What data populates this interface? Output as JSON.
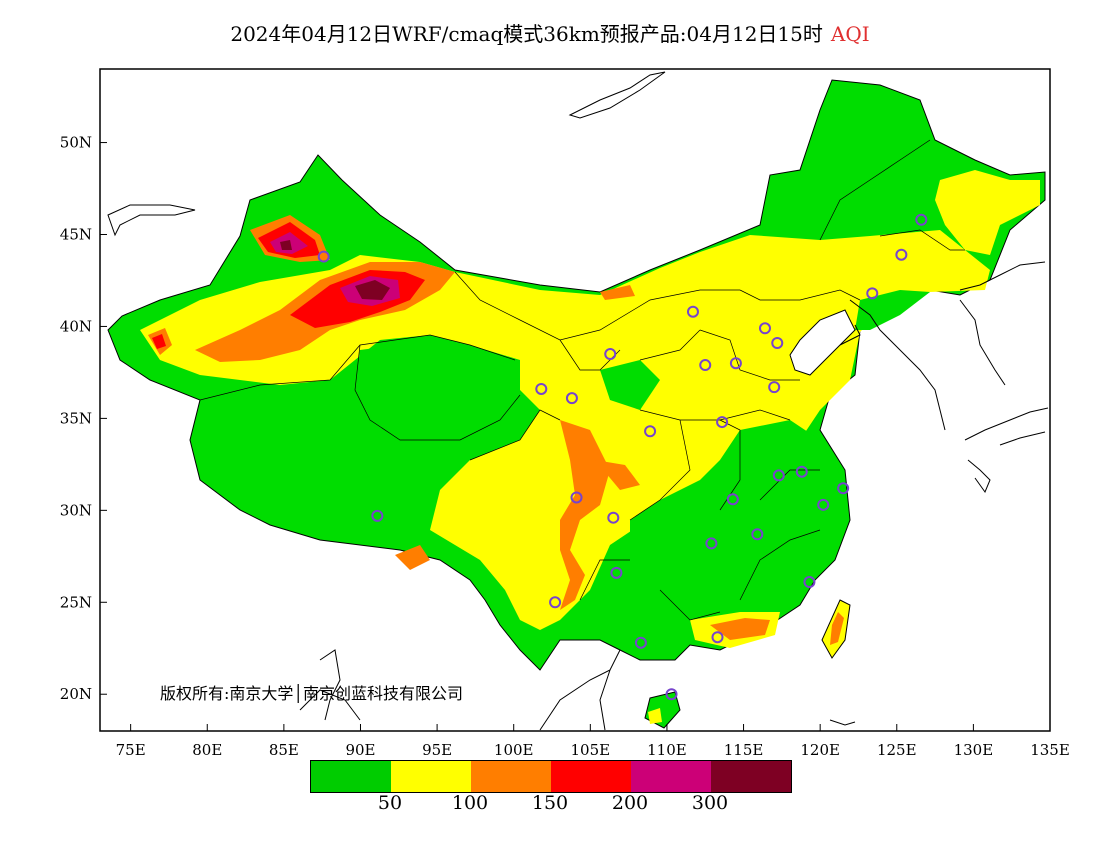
{
  "title": {
    "main": "2024年04月12日WRF/cmaq模式36km预报产品:04月12日15时",
    "variable": "AQI"
  },
  "axes": {
    "lat_labels": [
      "50N",
      "45N",
      "40N",
      "35N",
      "30N",
      "25N",
      "20N"
    ],
    "lon_labels": [
      "75E",
      "80E",
      "85E",
      "90E",
      "95E",
      "100E",
      "105E",
      "110E",
      "115E",
      "120E",
      "125E",
      "130E",
      "135E"
    ],
    "lon_range": [
      73,
      135
    ],
    "lat_range": [
      18,
      54
    ]
  },
  "copyright": "版权所有:南京大学│南京创蓝科技有限公司",
  "legend": {
    "colors": [
      "#00cc00",
      "#ffff00",
      "#ff7e00",
      "#ff0000",
      "#cc0077",
      "#7e0023"
    ],
    "labels": [
      "50",
      "100",
      "150",
      "200",
      "300"
    ]
  },
  "colors": {
    "good": "#00dd00",
    "moderate": "#ffff00",
    "usg": "#ff7e00",
    "unhealthy": "#ff0000",
    "very_unhealthy": "#cc0077",
    "hazardous": "#7e0023",
    "station_ring": "#7744cc"
  },
  "stations": [
    {
      "lon": 126.6,
      "lat": 45.8
    },
    {
      "lon": 125.3,
      "lat": 43.9
    },
    {
      "lon": 123.4,
      "lat": 41.8
    },
    {
      "lon": 87.6,
      "lat": 43.8
    },
    {
      "lon": 111.7,
      "lat": 40.8
    },
    {
      "lon": 116.4,
      "lat": 39.9
    },
    {
      "lon": 117.2,
      "lat": 39.1
    },
    {
      "lon": 106.3,
      "lat": 38.5
    },
    {
      "lon": 112.5,
      "lat": 37.9
    },
    {
      "lon": 114.5,
      "lat": 38.0
    },
    {
      "lon": 101.8,
      "lat": 36.6
    },
    {
      "lon": 103.8,
      "lat": 36.1
    },
    {
      "lon": 117.0,
      "lat": 36.7
    },
    {
      "lon": 108.9,
      "lat": 34.3
    },
    {
      "lon": 113.6,
      "lat": 34.8
    },
    {
      "lon": 117.3,
      "lat": 31.9
    },
    {
      "lon": 118.8,
      "lat": 32.1
    },
    {
      "lon": 121.5,
      "lat": 31.2
    },
    {
      "lon": 120.2,
      "lat": 30.3
    },
    {
      "lon": 114.3,
      "lat": 30.6
    },
    {
      "lon": 104.1,
      "lat": 30.7
    },
    {
      "lon": 106.5,
      "lat": 29.6
    },
    {
      "lon": 91.1,
      "lat": 29.7
    },
    {
      "lon": 112.9,
      "lat": 28.2
    },
    {
      "lon": 115.9,
      "lat": 28.7
    },
    {
      "lon": 106.7,
      "lat": 26.6
    },
    {
      "lon": 119.3,
      "lat": 26.1
    },
    {
      "lon": 102.7,
      "lat": 25.0
    },
    {
      "lon": 108.3,
      "lat": 22.8
    },
    {
      "lon": 113.3,
      "lat": 23.1
    },
    {
      "lon": 110.3,
      "lat": 20.0
    }
  ]
}
